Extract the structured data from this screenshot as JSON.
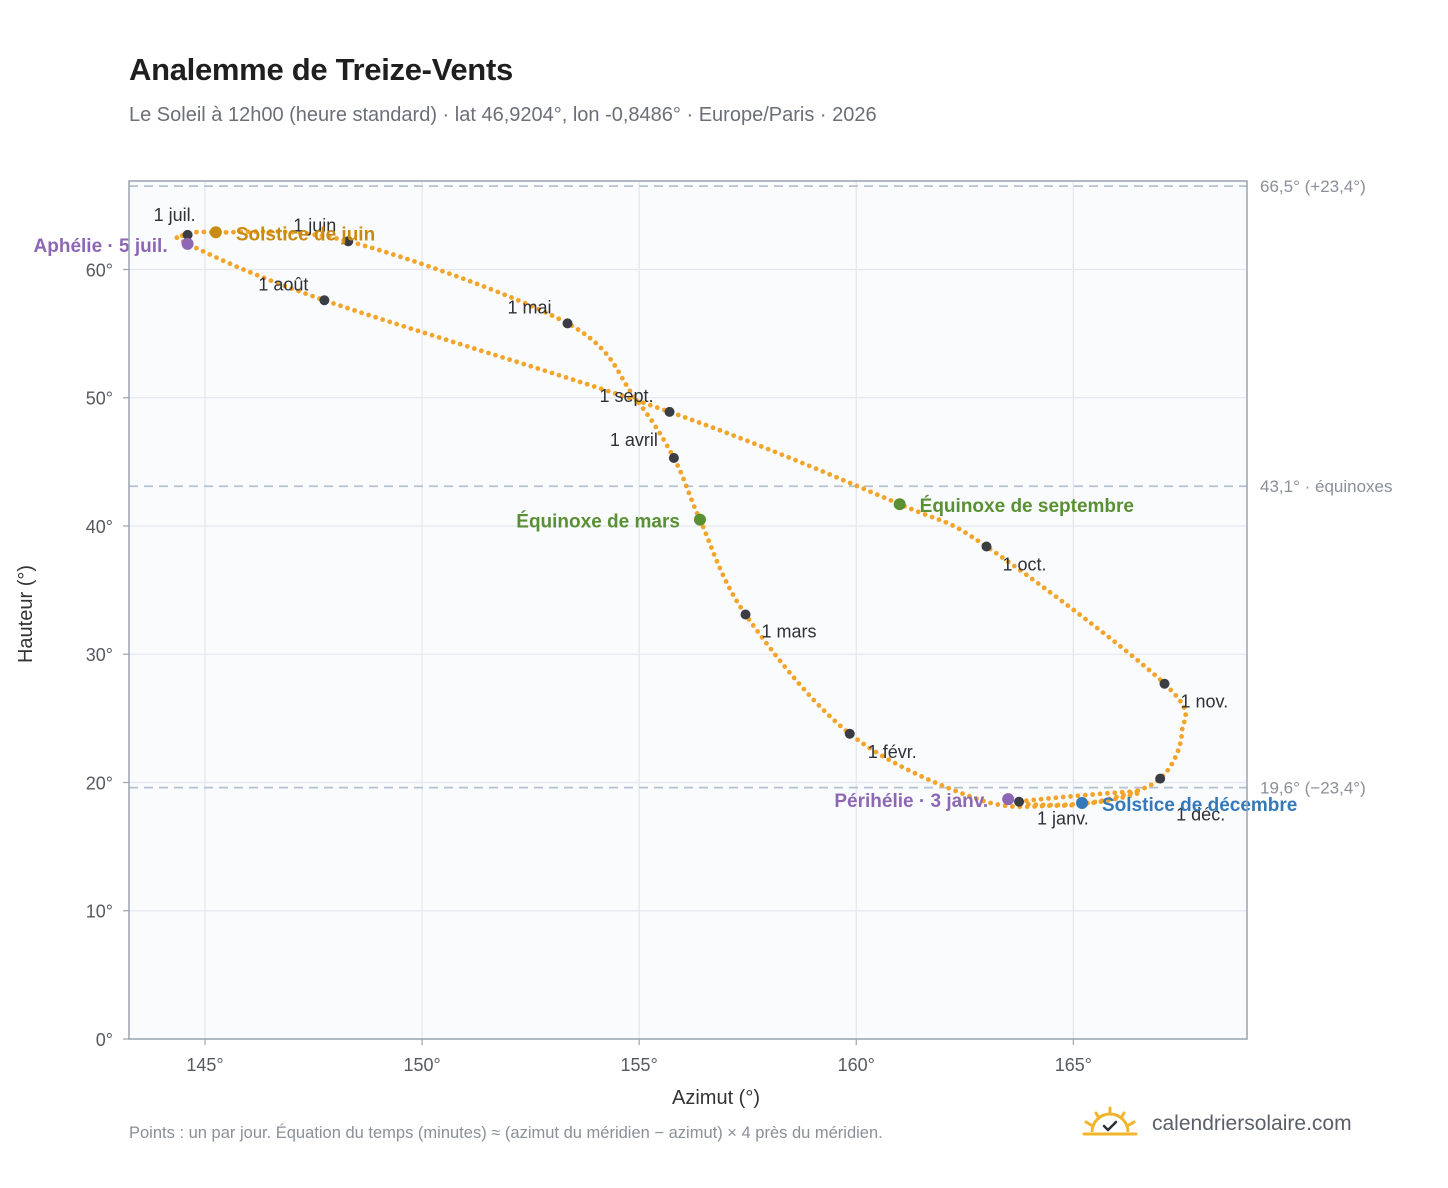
{
  "header": {
    "title": "Analemme de Treize-Vents",
    "subtitle": "Le Soleil à 12h00 (heure standard) · lat 46,9204°, lon -0,8486° · Europe/Paris · 2026"
  },
  "footer": {
    "note": "Points : un par jour. Équation du temps (minutes) ≈ (azimut du méridien − azimut) × 4 près du méridien.",
    "brand": "calendriersolaire.com"
  },
  "colors": {
    "curve": "#f2a52a",
    "month_marker": "#3a3d44",
    "solstice_june": "#c98a10",
    "solstice_december": "#3578ba",
    "equinox": "#5a9034",
    "apsis": "#8e67b4",
    "plot_bg": "#f9fbfd",
    "grid": "#e4e8ee",
    "reference_line": "#b6c2ce"
  },
  "chart_data": {
    "type": "scatter",
    "xlabel": "Azimut (°)",
    "ylabel": "Hauteur (°)",
    "xlim": [
      143.25,
      169
    ],
    "ylim": [
      0,
      66.9
    ],
    "x_ticks": [
      145,
      150,
      155,
      160,
      165
    ],
    "y_ticks": [
      0,
      10,
      20,
      30,
      40,
      50,
      60
    ],
    "x_tick_labels": [
      "145°",
      "150°",
      "155°",
      "160°",
      "165°"
    ],
    "y_tick_labels": [
      "0°",
      "10°",
      "20°",
      "30°",
      "40°",
      "50°",
      "60°"
    ],
    "grid": true,
    "reference_lines": [
      {
        "y": 66.5,
        "label": "66,5° (+23,4°)"
      },
      {
        "y": 43.1,
        "label": "43,1° · équinoxes"
      },
      {
        "y": 19.6,
        "label": "19,6° (−23,4°)"
      }
    ],
    "series": [
      {
        "points_per_day": true,
        "count": 365
      }
    ],
    "analemma_keypoints": [
      [
        163.75,
        18.5
      ],
      [
        166.45,
        19.3
      ],
      [
        165.8,
        18.6
      ],
      [
        164.6,
        18.2
      ],
      [
        162.8,
        18.7
      ],
      [
        159.85,
        23.8
      ],
      [
        157.45,
        33.1
      ],
      [
        156.4,
        40.5
      ],
      [
        155.8,
        45.3
      ],
      [
        154.9,
        50.0
      ],
      [
        153.35,
        55.8
      ],
      [
        148.3,
        62.2
      ],
      [
        145.25,
        62.9
      ],
      [
        144.6,
        62.7
      ],
      [
        144.6,
        62.0
      ],
      [
        147.75,
        57.6
      ],
      [
        155.7,
        48.9
      ],
      [
        161.0,
        41.7
      ],
      [
        163.0,
        38.4
      ],
      [
        167.1,
        27.7
      ],
      [
        167.5,
        23.9
      ],
      [
        167.0,
        20.3
      ],
      [
        165.8,
        18.7
      ],
      [
        164.7,
        18.25
      ],
      [
        163.75,
        18.5
      ]
    ],
    "month_markers": [
      {
        "label": "1 janv.",
        "az": 163.75,
        "alt": 18.5
      },
      {
        "label": "1 févr.",
        "az": 159.85,
        "alt": 23.8
      },
      {
        "label": "1 mars",
        "az": 157.45,
        "alt": 33.1
      },
      {
        "label": "1 avril",
        "az": 155.8,
        "alt": 45.3
      },
      {
        "label": "1 mai",
        "az": 153.35,
        "alt": 55.8
      },
      {
        "label": "1 juin",
        "az": 148.3,
        "alt": 62.2
      },
      {
        "label": "1 juil.",
        "az": 144.6,
        "alt": 62.7
      },
      {
        "label": "1 août",
        "az": 147.75,
        "alt": 57.6
      },
      {
        "label": "1 sept.",
        "az": 155.7,
        "alt": 48.9
      },
      {
        "label": "1 oct.",
        "az": 163.0,
        "alt": 38.4
      },
      {
        "label": "1 nov.",
        "az": 167.1,
        "alt": 27.7
      },
      {
        "label": "1 déc.",
        "az": 167.0,
        "alt": 20.3
      }
    ],
    "events": [
      {
        "label": "Solstice de juin",
        "az": 145.25,
        "alt": 62.9,
        "kind": "solstice_june"
      },
      {
        "label": "Aphélie · 5 juil.",
        "az": 144.6,
        "alt": 62.0,
        "kind": "apsis"
      },
      {
        "label": "Équinoxe de mars",
        "az": 156.4,
        "alt": 40.5,
        "kind": "equinox"
      },
      {
        "label": "Équinoxe de septembre",
        "az": 161.0,
        "alt": 41.7,
        "kind": "equinox"
      },
      {
        "label": "Périhélie · 3 janv.",
        "az": 163.5,
        "alt": 18.7,
        "kind": "apsis"
      },
      {
        "label": "Solstice de décembre",
        "az": 165.2,
        "alt": 18.4,
        "kind": "solstice_december"
      }
    ]
  }
}
